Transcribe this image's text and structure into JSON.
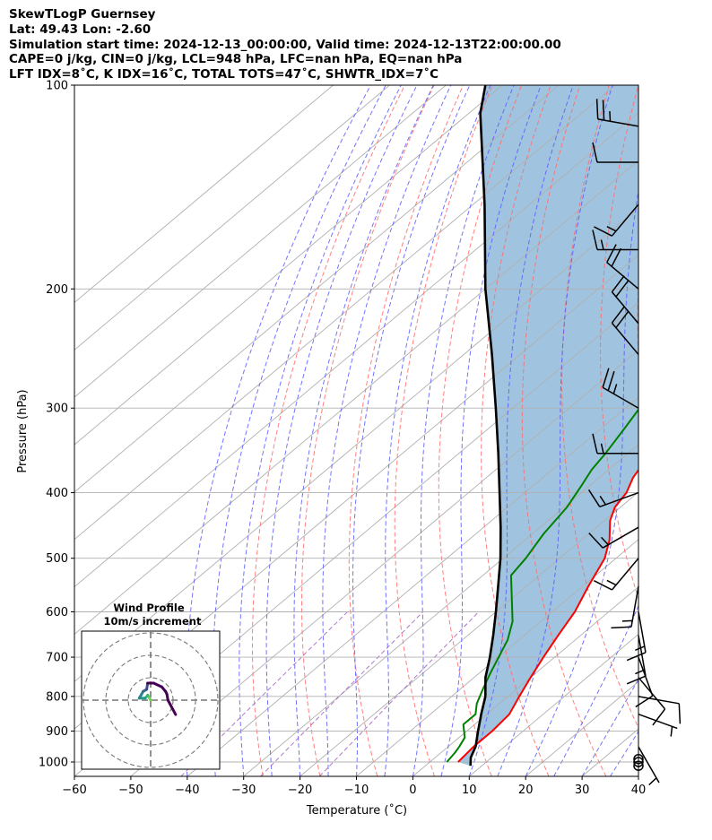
{
  "header": {
    "line1": "SkewTLogP Guernsey",
    "line2": "Lat: 49.43   Lon: -2.60",
    "line3": "Simulation start time: 2024-12-13_00:00:00, Valid time: 2024-12-13T22:00:00.00",
    "line4": "CAPE=0 j/kg, CIN=0 j/kg, LCL=948 hPa, LFC=nan hPa, EQ=nan hPa",
    "line5": "LFT IDX=8˚C, K IDX=16˚C, TOTAL TOTS=47˚C, SHWTR_IDX=7˚C"
  },
  "chart_data": [
    {
      "type": "line",
      "subtype": "skew-t log-p",
      "xlabel": "Temperature (˚C)",
      "ylabel": "Pressure (hPa)",
      "xlim": [
        -60,
        40
      ],
      "ylim": [
        1050,
        100
      ],
      "y_scale": "log",
      "x_ticks": [
        "−60",
        "−50",
        "−40",
        "−30",
        "−20",
        "−10",
        "0",
        "10",
        "20",
        "30",
        "40"
      ],
      "y_ticks": [
        "100",
        "200",
        "300",
        "400",
        "500",
        "600",
        "700",
        "800",
        "900",
        "1000"
      ],
      "grid": true,
      "colors": {
        "temperature": "#ff0000",
        "dewpoint": "#008000",
        "parcel": "#000000",
        "cape_fill": "#a0c4df",
        "dry_adiabats": "#ff6a6a",
        "moist_adiabats": "#5a5aff",
        "mixing_ratio": "#a060c0",
        "isotherms": "#b0b0b0"
      },
      "series": [
        {
          "key": "temperature",
          "points": [
            [
              5,
              1000
            ],
            [
              4.5,
              950
            ],
            [
              4.5,
              900
            ],
            [
              4,
              850
            ],
            [
              2,
              800
            ],
            [
              0,
              750
            ],
            [
              -2,
              700
            ],
            [
              -4,
              650
            ],
            [
              -6,
              600
            ],
            [
              -9,
              550
            ],
            [
              -12,
              500
            ],
            [
              -15,
              470
            ],
            [
              -19,
              440
            ],
            [
              -21,
              420
            ],
            [
              -22,
              400
            ],
            [
              -24,
              380
            ],
            [
              -26,
              350
            ],
            [
              -29,
              320
            ],
            [
              -31.5,
              300
            ],
            [
              -34,
              280
            ],
            [
              -37,
              260
            ],
            [
              -39,
              250
            ],
            [
              -41,
              240
            ],
            [
              -42,
              230
            ],
            [
              -44.5,
              210
            ],
            [
              -46,
              200
            ],
            [
              -46.5,
              190
            ],
            [
              -46.5,
              180
            ],
            [
              -47,
              170
            ],
            [
              -47,
              160
            ],
            [
              -47.5,
              150
            ],
            [
              -49,
              140
            ],
            [
              -51,
              130
            ],
            [
              -53,
              120
            ],
            [
              -54,
              110
            ],
            [
              -55,
              100
            ]
          ]
        },
        {
          "key": "dewpoint",
          "points": [
            [
              3,
              1000
            ],
            [
              2.5,
              970
            ],
            [
              2,
              950
            ],
            [
              1,
              920
            ],
            [
              -2,
              880
            ],
            [
              -2,
              850
            ],
            [
              -4,
              820
            ],
            [
              -5,
              800
            ],
            [
              -6,
              780
            ],
            [
              -8,
              740
            ],
            [
              -12,
              660
            ],
            [
              -15,
              620
            ],
            [
              -25,
              530
            ],
            [
              -26,
              500
            ],
            [
              -28,
              460
            ],
            [
              -29.5,
              420
            ],
            [
              -31.5,
              390
            ],
            [
              -33,
              370
            ],
            [
              -34,
              350
            ],
            [
              -36,
              320
            ],
            [
              -37.5,
              300
            ],
            [
              -41,
              270
            ],
            [
              -44,
              250
            ],
            [
              -46,
              230
            ],
            [
              -49,
              210
            ],
            [
              -51,
              200
            ],
            [
              -52.5,
              190
            ],
            [
              -55,
              180
            ],
            [
              -55,
              170
            ],
            [
              -58,
              160
            ],
            [
              -60,
              150
            ],
            [
              -61,
              140
            ],
            [
              -62,
              130
            ],
            [
              -62,
              120
            ],
            [
              -62,
              110
            ],
            [
              -63,
              100
            ]
          ]
        },
        {
          "key": "parcel",
          "points": [
            [
              8,
              1013
            ],
            [
              6.3,
              985
            ],
            [
              4.8,
              948
            ],
            [
              2,
              900
            ],
            [
              -1,
              850
            ],
            [
              -4,
              800
            ],
            [
              -8,
              750
            ],
            [
              -11.5,
              700
            ],
            [
              -15.5,
              650
            ],
            [
              -20,
              600
            ],
            [
              -25,
              550
            ],
            [
              -30.5,
              500
            ],
            [
              -37,
              450
            ],
            [
              -44.5,
              400
            ],
            [
              -53,
              350
            ],
            [
              -63,
              300
            ],
            [
              -75,
              250
            ],
            [
              -90,
              200
            ],
            [
              -108,
              150
            ],
            [
              -128,
              110
            ],
            [
              -133,
              100
            ]
          ]
        }
      ],
      "wind_barbs": {
        "pressures_hPa": [
          1013,
          1000,
          990,
          950,
          850,
          800,
          750,
          700,
          650,
          600,
          550,
          500,
          450,
          400,
          350,
          300,
          250,
          225,
          200,
          175,
          150,
          130,
          115
        ],
        "speed_kt": [
          0,
          0,
          0,
          5,
          5,
          10,
          10,
          10,
          15,
          15,
          15,
          15,
          15,
          15,
          15,
          25,
          20,
          20,
          20,
          15,
          15,
          10,
          25
        ],
        "direction_deg": [
          0,
          0,
          0,
          150,
          110,
          100,
          140,
          160,
          170,
          170,
          190,
          220,
          240,
          250,
          270,
          300,
          320,
          320,
          310,
          270,
          220,
          270,
          280
        ]
      },
      "inset": {
        "title": "Wind Profile",
        "subtitle": "10m/s increment"
      }
    }
  ]
}
